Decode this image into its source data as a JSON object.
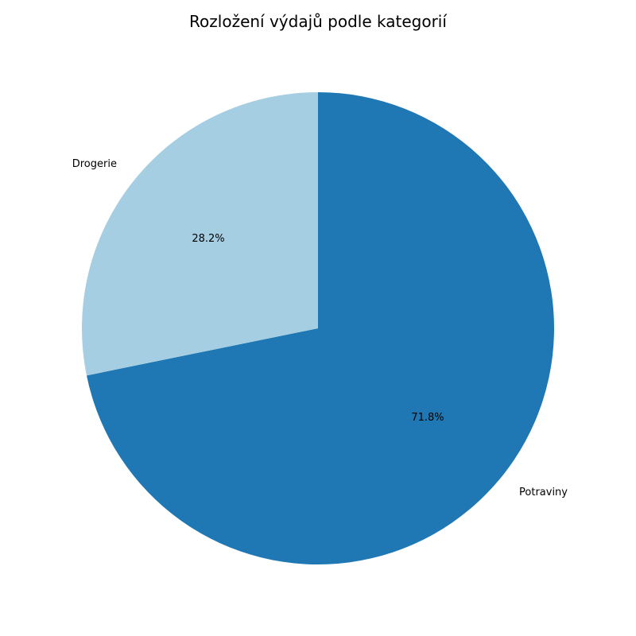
{
  "chart_data": {
    "type": "pie",
    "title": "Rozložení výdajů podle kategorií",
    "categories": [
      "Potraviny",
      "Drogerie"
    ],
    "values": [
      71.8,
      28.2
    ],
    "value_labels": [
      "71.8%",
      "28.2%"
    ],
    "colors": [
      "#1f78b4",
      "#a6cee3"
    ],
    "start_angle_deg": 90,
    "direction": "clockwise",
    "legend": "none"
  }
}
